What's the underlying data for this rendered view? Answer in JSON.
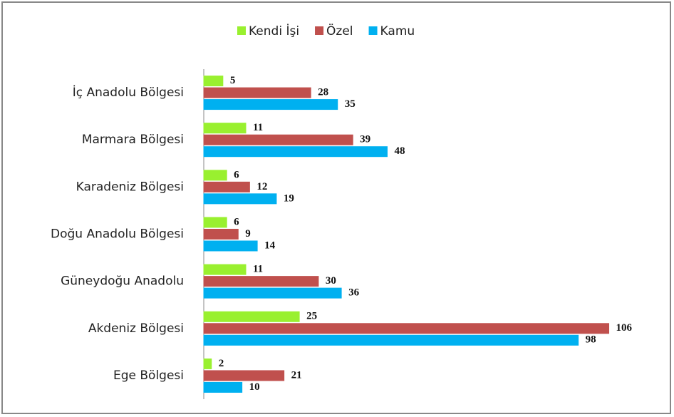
{
  "chart_data": {
    "type": "hbar",
    "categories": [
      "İç Anadolu Bölgesi",
      "Marmara Bölgesi",
      "Karadeniz Bölgesi",
      "Doğu Anadolu Bölgesi",
      "Güneydoğu Anadolu",
      "Akdeniz Bölgesi",
      "Ege Bölgesi"
    ],
    "series": [
      {
        "name": "Kendi İşi",
        "color": "#99f02f",
        "values": [
          5,
          11,
          6,
          6,
          11,
          25,
          2
        ]
      },
      {
        "name": "Özel",
        "color": "#c0504d",
        "values": [
          28,
          39,
          12,
          9,
          30,
          106,
          21
        ]
      },
      {
        "name": "Kamu",
        "color": "#00b0f0",
        "values": [
          35,
          48,
          19,
          14,
          36,
          98,
          10
        ]
      }
    ],
    "xlim": [
      0,
      110
    ],
    "legend": "top"
  }
}
